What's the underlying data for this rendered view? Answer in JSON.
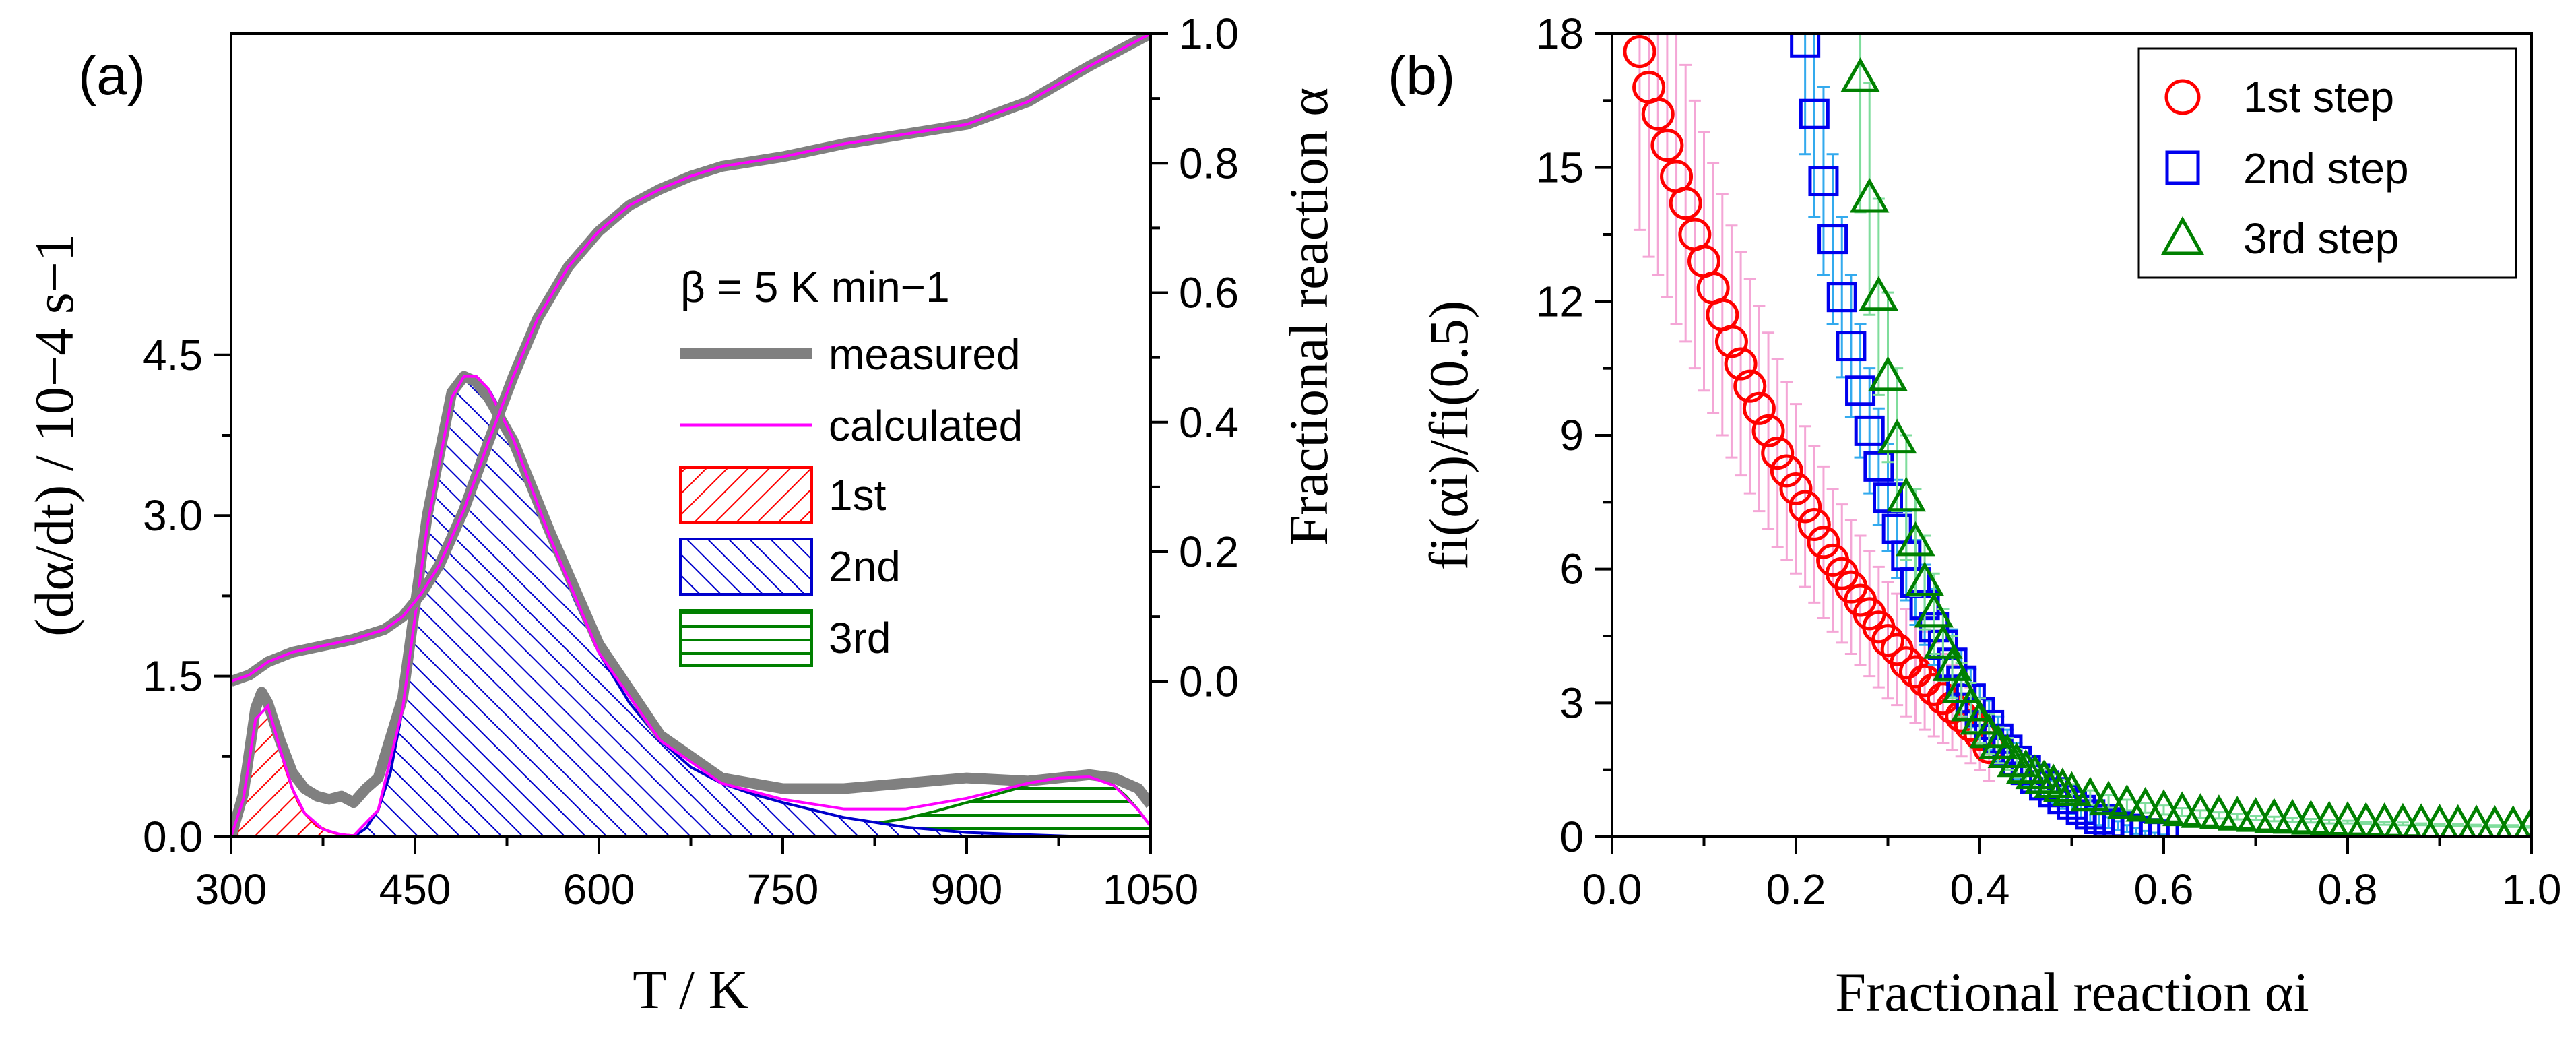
{
  "panel_a_label": "(a)",
  "panel_b_label": "(b)",
  "chart_data": [
    {
      "type": "area",
      "panel": "(a)",
      "xlabel": "T / K",
      "ylabel_left": "(dα/dt) / 10−4 s−1",
      "ylabel_right": "Fractional reaction α",
      "xlim": [
        300,
        1050
      ],
      "ylim_left": [
        0,
        7.5
      ],
      "ylim_right_alpha": [
        -0.24,
        1.0
      ],
      "xticks": [
        300,
        450,
        600,
        750,
        900,
        1050
      ],
      "yticks_left": [
        0.0,
        1.5,
        3.0,
        4.5
      ],
      "yticks_right": [
        0.0,
        0.2,
        0.4,
        0.6,
        0.8,
        1.0
      ],
      "legend": {
        "heating_rate": "β = 5 K min−1",
        "measured": "measured",
        "calculated": "calculated",
        "step1": "1st",
        "step2": "2nd",
        "step3": "3rd"
      },
      "colors": {
        "measured": "#808080",
        "calculated": "#ff00ff",
        "step1": "#ff0000",
        "step2": "#0000cc",
        "step3": "#008000"
      },
      "alpha_curve": {
        "T": [
          300,
          315,
          330,
          350,
          375,
          400,
          425,
          440,
          455,
          470,
          490,
          510,
          530,
          550,
          575,
          600,
          625,
          650,
          675,
          700,
          750,
          800,
          850,
          900,
          950,
          1000,
          1050
        ],
        "alpha": [
          0.0,
          0.01,
          0.03,
          0.045,
          0.055,
          0.065,
          0.08,
          0.1,
          0.135,
          0.18,
          0.265,
          0.37,
          0.47,
          0.56,
          0.64,
          0.695,
          0.735,
          0.76,
          0.78,
          0.795,
          0.81,
          0.83,
          0.845,
          0.86,
          0.895,
          0.95,
          1.0
        ]
      },
      "step1": {
        "T": [
          305,
          310,
          315,
          320,
          325,
          330,
          335,
          340,
          345,
          350,
          355,
          360,
          370,
          380,
          390,
          400,
          410,
          420
        ],
        "rate": [
          0.05,
          0.35,
          0.75,
          1.1,
          1.28,
          1.22,
          1.05,
          0.82,
          0.62,
          0.45,
          0.32,
          0.22,
          0.1,
          0.05,
          0.02,
          0.01,
          0.0,
          0.0
        ]
      },
      "step2": {
        "T": [
          400,
          410,
          420,
          430,
          440,
          450,
          460,
          470,
          480,
          490,
          500,
          510,
          520,
          530,
          540,
          560,
          580,
          600,
          625,
          650,
          675,
          700,
          725,
          750,
          775,
          800,
          850,
          900,
          950,
          1000
        ],
        "rate": [
          0.0,
          0.08,
          0.25,
          0.6,
          1.2,
          2.0,
          2.9,
          3.6,
          4.1,
          4.3,
          4.3,
          4.18,
          3.98,
          3.72,
          3.42,
          2.8,
          2.22,
          1.72,
          1.25,
          0.9,
          0.65,
          0.5,
          0.4,
          0.32,
          0.25,
          0.18,
          0.09,
          0.04,
          0.02,
          0.0
        ]
      },
      "step3": {
        "T": [
          700,
          750,
          800,
          850,
          875,
          900,
          925,
          950,
          975,
          1000,
          1010,
          1020,
          1030,
          1040,
          1050
        ],
        "rate": [
          0.0,
          0.03,
          0.08,
          0.17,
          0.24,
          0.32,
          0.4,
          0.48,
          0.54,
          0.56,
          0.54,
          0.48,
          0.38,
          0.25,
          0.1
        ]
      },
      "calculated_rate": {
        "T": [
          300,
          310,
          320,
          330,
          340,
          350,
          360,
          375,
          390,
          400,
          420,
          440,
          460,
          480,
          490,
          500,
          510,
          530,
          560,
          600,
          650,
          700,
          750,
          800,
          850,
          900,
          950,
          975,
          1000,
          1020,
          1040,
          1050
        ],
        "rate": [
          0.0,
          0.35,
          1.1,
          1.22,
          0.82,
          0.45,
          0.22,
          0.07,
          0.02,
          0.01,
          0.25,
          1.2,
          2.9,
          4.1,
          4.3,
          4.3,
          4.18,
          3.72,
          2.8,
          1.72,
          0.9,
          0.5,
          0.35,
          0.26,
          0.26,
          0.36,
          0.5,
          0.55,
          0.56,
          0.48,
          0.25,
          0.1
        ]
      },
      "measured_rate": {
        "T": [
          300,
          310,
          320,
          325,
          330,
          340,
          350,
          360,
          370,
          380,
          390,
          400,
          410,
          420,
          440,
          460,
          480,
          490,
          500,
          510,
          530,
          560,
          600,
          650,
          700,
          750,
          800,
          850,
          900,
          950,
          975,
          1000,
          1020,
          1040,
          1050
        ],
        "rate": [
          0.0,
          0.4,
          1.2,
          1.35,
          1.25,
          0.9,
          0.6,
          0.45,
          0.38,
          0.35,
          0.38,
          0.32,
          0.45,
          0.55,
          1.3,
          3.0,
          4.15,
          4.3,
          4.25,
          4.1,
          3.7,
          2.85,
          1.8,
          0.95,
          0.55,
          0.45,
          0.45,
          0.5,
          0.55,
          0.52,
          0.55,
          0.58,
          0.55,
          0.45,
          0.3
        ]
      }
    },
    {
      "type": "scatter",
      "panel": "(b)",
      "xlabel": "Fractional reaction αi",
      "ylabel": "fi(αi)/fi(0.5)",
      "xlim": [
        0.0,
        1.0
      ],
      "ylim": [
        0,
        18
      ],
      "xticks": [
        0.0,
        0.2,
        0.4,
        0.6,
        0.8,
        1.0
      ],
      "yticks": [
        0,
        3,
        6,
        9,
        12,
        15,
        18
      ],
      "legend": [
        {
          "label": "1st step",
          "marker": "circle",
          "color": "#ff0000"
        },
        {
          "label": "2nd step",
          "marker": "square",
          "color": "#0000ee"
        },
        {
          "label": "3rd step",
          "marker": "triangle",
          "color": "#008000"
        }
      ],
      "error_colors": {
        "step1": "#f4a6d6",
        "step2": "#33aaee",
        "step3": "#7fdd9c"
      },
      "series": [
        {
          "name": "1st step",
          "x": [
            0.03,
            0.04,
            0.05,
            0.06,
            0.07,
            0.08,
            0.09,
            0.1,
            0.11,
            0.12,
            0.13,
            0.14,
            0.15,
            0.16,
            0.17,
            0.18,
            0.19,
            0.2,
            0.21,
            0.22,
            0.23,
            0.24,
            0.25,
            0.26,
            0.27,
            0.28,
            0.29,
            0.3,
            0.31,
            0.32,
            0.33,
            0.34,
            0.35,
            0.36,
            0.37,
            0.38,
            0.39,
            0.4,
            0.41
          ],
          "y": [
            17.6,
            16.8,
            16.2,
            15.5,
            14.8,
            14.2,
            13.5,
            12.9,
            12.3,
            11.7,
            11.1,
            10.6,
            10.1,
            9.6,
            9.1,
            8.6,
            8.2,
            7.8,
            7.4,
            7.0,
            6.6,
            6.2,
            5.9,
            5.6,
            5.3,
            5.0,
            4.7,
            4.4,
            4.2,
            3.9,
            3.7,
            3.5,
            3.3,
            3.1,
            2.9,
            2.7,
            2.5,
            2.3,
            2.0
          ],
          "err": [
            4.0,
            3.8,
            3.6,
            3.4,
            3.3,
            3.1,
            3.0,
            2.9,
            2.8,
            2.7,
            2.6,
            2.5,
            2.4,
            2.3,
            2.2,
            2.1,
            2.0,
            1.9,
            1.8,
            1.75,
            1.7,
            1.6,
            1.55,
            1.5,
            1.45,
            1.4,
            1.35,
            1.3,
            1.25,
            1.2,
            1.15,
            1.1,
            1.05,
            1.0,
            0.95,
            0.9,
            0.85,
            0.8,
            0.75
          ]
        },
        {
          "name": "2nd step",
          "x": [
            0.21,
            0.22,
            0.23,
            0.24,
            0.25,
            0.26,
            0.27,
            0.28,
            0.29,
            0.3,
            0.31,
            0.32,
            0.33,
            0.34,
            0.35,
            0.36,
            0.37,
            0.38,
            0.39,
            0.4,
            0.41,
            0.42,
            0.43,
            0.44,
            0.45,
            0.46,
            0.47,
            0.48,
            0.49,
            0.5,
            0.51,
            0.52,
            0.53,
            0.54,
            0.55,
            0.56,
            0.57,
            0.58,
            0.59,
            0.6
          ],
          "y": [
            17.8,
            16.2,
            14.7,
            13.4,
            12.1,
            11.0,
            10.0,
            9.1,
            8.3,
            7.6,
            6.9,
            6.3,
            5.7,
            5.2,
            4.7,
            4.3,
            3.9,
            3.5,
            3.1,
            2.8,
            2.5,
            2.2,
            1.95,
            1.7,
            1.5,
            1.3,
            1.15,
            1.0,
            0.85,
            0.72,
            0.6,
            0.5,
            0.4,
            0.32,
            0.25,
            0.18,
            0.13,
            0.08,
            0.05,
            0.02
          ],
          "err": [
            2.5,
            2.3,
            2.1,
            1.9,
            1.8,
            1.6,
            1.5,
            1.4,
            1.3,
            1.2,
            1.1,
            1.0,
            0.95,
            0.9,
            0.85,
            0.8,
            0.75,
            0.7,
            0.65,
            0.6,
            0.55,
            0.5,
            0.45,
            0.4,
            0.35,
            0.3,
            0.28,
            0.25,
            0.22,
            0.2,
            0.18,
            0.16,
            0.14,
            0.12,
            0.1,
            0.08,
            0.06,
            0.05,
            0.04,
            0.03
          ]
        },
        {
          "name": "3rd step",
          "x": [
            0.27,
            0.28,
            0.29,
            0.3,
            0.31,
            0.32,
            0.33,
            0.34,
            0.35,
            0.36,
            0.37,
            0.38,
            0.39,
            0.4,
            0.41,
            0.42,
            0.43,
            0.44,
            0.45,
            0.46,
            0.47,
            0.48,
            0.49,
            0.5,
            0.52,
            0.54,
            0.56,
            0.58,
            0.6,
            0.62,
            0.64,
            0.66,
            0.68,
            0.7,
            0.72,
            0.74,
            0.76,
            0.78,
            0.8,
            0.82,
            0.84,
            0.86,
            0.88,
            0.9,
            0.92,
            0.94,
            0.96,
            0.98,
            1.0
          ],
          "y": [
            17.0,
            14.3,
            12.1,
            10.3,
            8.9,
            7.6,
            6.6,
            5.7,
            5.0,
            4.3,
            3.8,
            3.3,
            2.9,
            2.6,
            2.3,
            2.05,
            1.85,
            1.65,
            1.5,
            1.38,
            1.27,
            1.17,
            1.08,
            1.0,
            0.88,
            0.79,
            0.71,
            0.65,
            0.6,
            0.55,
            0.51,
            0.48,
            0.45,
            0.42,
            0.4,
            0.38,
            0.36,
            0.34,
            0.33,
            0.31,
            0.3,
            0.29,
            0.28,
            0.27,
            0.26,
            0.25,
            0.24,
            0.24,
            0.23
          ],
          "err": [
            3.0,
            2.6,
            2.2,
            1.9,
            1.6,
            1.4,
            1.2,
            1.05,
            0.9,
            0.8,
            0.7,
            0.6,
            0.55,
            0.5,
            0.45,
            0.4,
            0.36,
            0.32,
            0.3,
            0.27,
            0.25,
            0.22,
            0.2,
            0.18,
            0.16,
            0.14,
            0.12,
            0.11,
            0.1,
            0.09,
            0.08,
            0.07,
            0.06,
            0.05,
            0.05,
            0.04,
            0.04,
            0.04,
            0.03,
            0.03,
            0.03,
            0.03,
            0.02,
            0.02,
            0.02,
            0.02,
            0.02,
            0.02,
            0.02
          ]
        }
      ]
    }
  ]
}
